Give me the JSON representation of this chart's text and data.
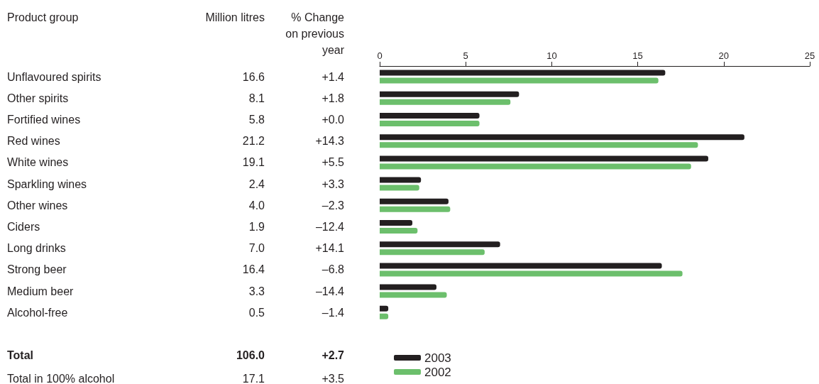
{
  "chart_data": {
    "type": "bar",
    "orientation": "horizontal",
    "categories": [
      "Unflavoured spirits",
      "Other spirits",
      "Fortified wines",
      "Red wines",
      "White wines",
      "Sparkling wines",
      "Other wines",
      "Ciders",
      "Long drinks",
      "Strong beer",
      "Medium beer",
      "Alcohol-free"
    ],
    "series": [
      {
        "name": "2003",
        "color": "#231f20",
        "values": [
          16.6,
          8.1,
          5.8,
          21.2,
          19.1,
          2.4,
          4.0,
          1.9,
          7.0,
          16.4,
          3.3,
          0.5
        ],
        "value_labels": [
          "16.6",
          "8.1",
          "5.8",
          "21.2",
          "19.1",
          "2.4",
          "4.0",
          "1.9",
          "7.0",
          "16.4",
          "3.3",
          "0.5"
        ]
      },
      {
        "name": "2002",
        "color": "#6cbf6c",
        "values": [
          16.2,
          7.6,
          5.8,
          18.5,
          18.1,
          2.3,
          4.1,
          2.2,
          6.1,
          17.6,
          3.9,
          0.5
        ]
      }
    ],
    "x2lim": [
      0,
      25
    ],
    "x2ticks": [
      0,
      5,
      10,
      15,
      20,
      25
    ],
    "grid": false,
    "legend": "bottom",
    "annotations": [
      "Product group",
      "Million litres",
      "% Change\non previous\nyear",
      "+1.4",
      "+1.8",
      "+0.0",
      "+14.3",
      "+5.5",
      "+3.3",
      "–2.3",
      "–12.4",
      "+14.1",
      "–6.8",
      "–14.4",
      "–1.4",
      "Total",
      "106.0",
      "+2.7",
      "Total in 100% alcohol",
      "17.1",
      "+3.5"
    ]
  }
}
